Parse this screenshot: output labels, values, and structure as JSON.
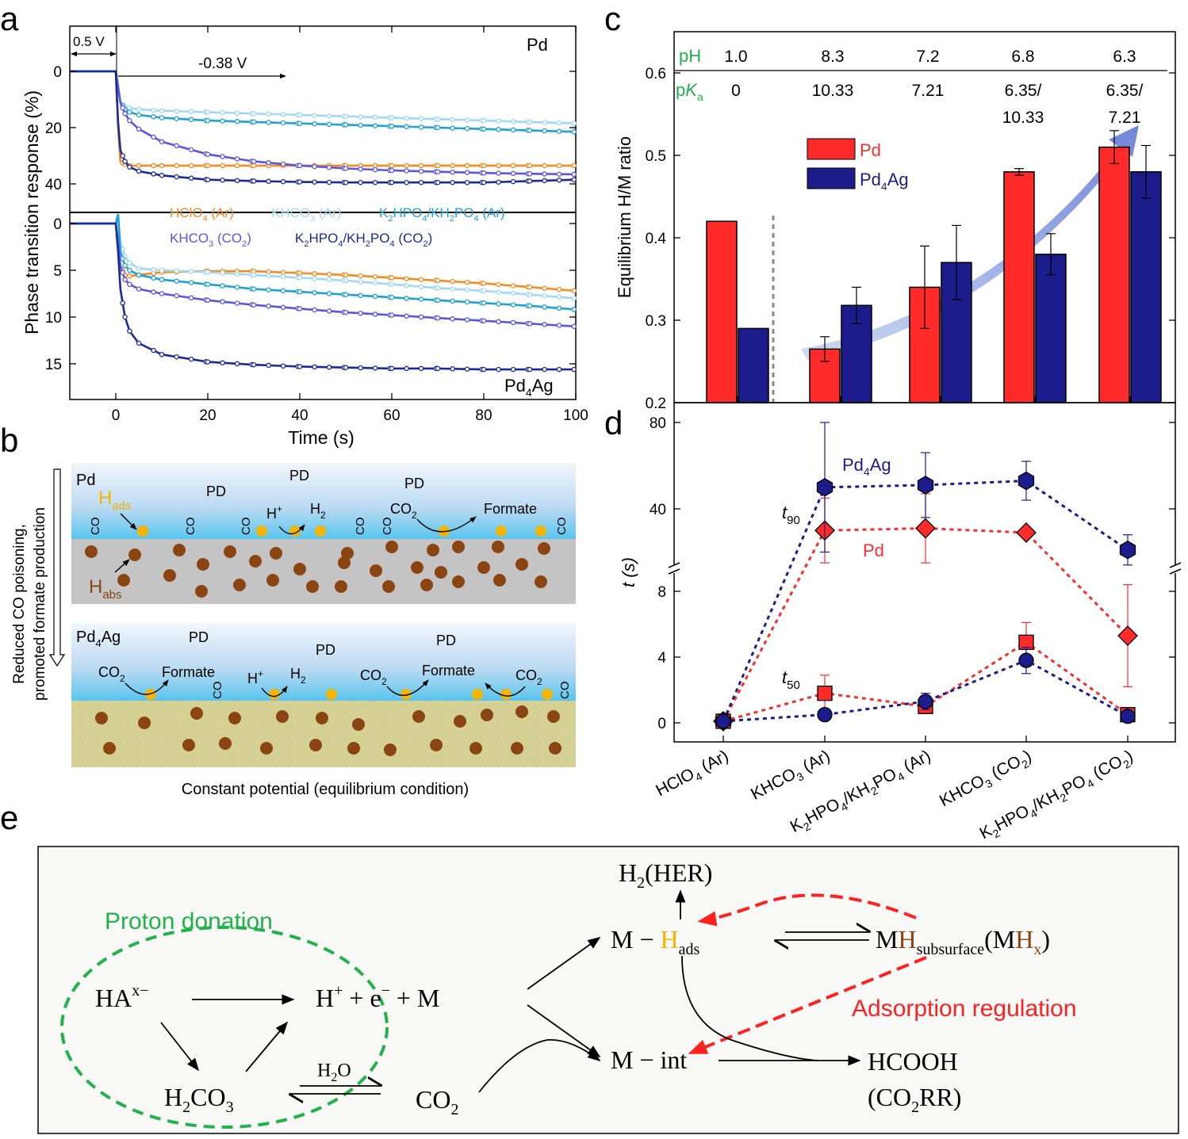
{
  "panels": {
    "a": "a",
    "b": "b",
    "c": "c",
    "d": "d",
    "e": "e"
  },
  "colors": {
    "orange": "#f58a1f",
    "lightblue": "#9fd8f4",
    "cyan": "#1ea0d8",
    "blue_violet": "#5a55e3",
    "navy": "#1a2a9a",
    "red": "#ff2b2b",
    "darkblue": "#1c1c8c",
    "green": "#21b24b"
  },
  "panel_b": {
    "side_label_1": "Reduced CO poisoning,",
    "side_label_2": "promoted formate production",
    "top": {
      "metal": "Pd",
      "h_ads": "H",
      "h_ads_sub": "ads",
      "h_abs": "H",
      "h_abs_sub": "abs",
      "pd_labels": [
        "PD",
        "PD",
        "PD"
      ],
      "co": "CO",
      "h_plus": "H",
      "h_plus_sup": "+",
      "h2": "H",
      "h2_sub": "2",
      "co2": "CO",
      "co2_sub": "2",
      "formate": "Formate"
    },
    "bottom": {
      "metal": "Pd",
      "metal_sub": "4",
      "metal_suffix": "Ag",
      "pd_labels": [
        "PD",
        "PD",
        "PD"
      ],
      "co2": "CO",
      "co2_sub": "2",
      "formate": "Formate",
      "h_plus": "H",
      "h_plus_sup": "+",
      "h2": "H",
      "h2_sub": "2",
      "co": "CO"
    },
    "caption": "Constant potential (equilibrium condition)"
  },
  "panel_e": {
    "proton_donation": "Proton donation",
    "adsorption_regulation": "Adsorption regulation",
    "ha": "HA",
    "ha_sup": "x−",
    "hplus_eq": "H",
    "hplus_eq_sup": "+",
    "hplus_eq_rest": " + e",
    "e_sup": "−",
    "m_rest": " + M",
    "h2co3_a": "H",
    "h2co3_sub1": "2",
    "h2co3_b": "CO",
    "h2co3_sub2": "3",
    "h2o_a": "H",
    "h2o_sub": "2",
    "h2o_b": "O",
    "co2_a": "CO",
    "co2_sub": "2",
    "m_hads_a": "M − ",
    "m_hads_h": "H",
    "m_hads_sub": "ads",
    "h2her_a": "H",
    "h2her_sub": "2",
    "h2her_b": "(HER)",
    "mh_sub_a": "M",
    "mh_sub_h": "H",
    "mh_sub_sub": "subsurface",
    "mh_sub_b": "(M",
    "mh_sub_h2": "H",
    "mh_sub_x": "x",
    "mh_sub_c": ")",
    "m_int": "M − int",
    "hcooh": "HCOOH",
    "co2rr_a": "(CO",
    "co2rr_sub": "2",
    "co2rr_b": "RR)"
  },
  "chart_data": [
    {
      "panel": "a",
      "type": "line",
      "xlabel": "Time (s)",
      "ylabel": "Phase transition response (%)",
      "xlim": [
        -10,
        100
      ],
      "xticks": [
        0,
        20,
        40,
        60,
        80,
        100
      ],
      "annotations": {
        "step1": "0.5 V",
        "step2": "-0.38 V",
        "top_metal": "Pd",
        "bottom_metal_a": "Pd",
        "bottom_metal_sub": "4",
        "bottom_metal_b": "Ag"
      },
      "legend": [
        {
          "text": "HClO",
          "sub": "4",
          "rest": " (Ar)",
          "color": "#f58a1f"
        },
        {
          "text": "KHCO",
          "sub": "3",
          "rest": " (Ar)",
          "color": "#9fd8f4"
        },
        {
          "text": "K",
          "sub": "2",
          "rest": "HPO",
          "sub2": "4",
          "rest2": "/KH",
          "sub3": "2",
          "rest3": "PO",
          "sub4": "4",
          "rest4": " (Ar)",
          "color": "#1ea0d8"
        },
        {
          "text": "KHCO",
          "sub": "3",
          "rest": " (CO",
          "sub2": "2",
          "rest2": ")",
          "color": "#5a55e3"
        },
        {
          "text": "K",
          "sub": "2",
          "rest": "HPO",
          "sub2": "4",
          "rest2": "/KH",
          "sub3": "2",
          "rest3": "PO",
          "sub4": "4",
          "rest4": " (CO",
          "sub5": "2",
          "rest5": ")",
          "color": "#1a2a9a"
        }
      ],
      "subplots": [
        {
          "name": "Pd",
          "ylim": [
            0,
            50
          ],
          "yticks": [
            0,
            20,
            40
          ],
          "inverted": true,
          "series": [
            {
              "label": "HClO4 (Ar)",
              "color": "#f58a1f",
              "x": [
                -10,
                0,
                0.5,
                1,
                2,
                3,
                5,
                10,
                20,
                30,
                40,
                50,
                60,
                70,
                80,
                90,
                100
              ],
              "y": [
                0,
                0,
                20,
                32,
                33,
                33.5,
                33.5,
                33.5,
                33.5,
                33.5,
                33.5,
                33.5,
                33.5,
                33.5,
                33.5,
                33.5,
                33.5
              ]
            },
            {
              "label": "KHCO3 (Ar)",
              "color": "#9fd8f4",
              "x": [
                -10,
                0,
                0.5,
                1,
                2,
                3,
                5,
                10,
                20,
                30,
                40,
                50,
                60,
                70,
                80,
                90,
                100
              ],
              "y": [
                0,
                0,
                6,
                11,
                12.5,
                13,
                13.5,
                14,
                14.5,
                15,
                15.5,
                16,
                16.5,
                17,
                17.5,
                18,
                18.5
              ]
            },
            {
              "label": "K2HPO4/KH2PO4 (Ar)",
              "color": "#1ea0d8",
              "x": [
                -10,
                0,
                0.5,
                1,
                2,
                3,
                5,
                10,
                20,
                30,
                40,
                50,
                60,
                70,
                80,
                90,
                100
              ],
              "y": [
                0,
                0,
                5,
                11,
                13.5,
                14.5,
                15.5,
                16.5,
                17.5,
                18,
                18.5,
                19,
                19.5,
                20,
                20.5,
                21,
                21.5
              ]
            },
            {
              "label": "KHCO3 (CO2)",
              "color": "#5a55e3",
              "x": [
                -10,
                0,
                0.5,
                1,
                2,
                3,
                5,
                10,
                20,
                30,
                40,
                50,
                60,
                70,
                80,
                90,
                100
              ],
              "y": [
                0,
                0,
                6,
                11,
                15,
                17.5,
                20.5,
                25,
                29.5,
                32,
                33.5,
                34.5,
                35.2,
                35.7,
                36.1,
                36.4,
                36.6
              ]
            },
            {
              "label": "K2HPO4/KH2PO4 (CO2)",
              "color": "#1a2a9a",
              "x": [
                -10,
                0,
                0.5,
                1,
                2,
                3,
                5,
                10,
                20,
                30,
                40,
                50,
                60,
                70,
                80,
                90,
                100
              ],
              "y": [
                0,
                0,
                18,
                28,
                32,
                34,
                35.5,
                37,
                38.5,
                39,
                39.3,
                39.5,
                39.5,
                39.5,
                39.5,
                39,
                38.5
              ]
            }
          ]
        },
        {
          "name": "Pd4Ag",
          "ylim": [
            -1,
            19
          ],
          "yticks": [
            0,
            5,
            10,
            15
          ],
          "inverted": true,
          "series": [
            {
              "label": "HClO4 (Ar)",
              "color": "#f58a1f",
              "x": [
                -10,
                0,
                0.5,
                1,
                2,
                3,
                5,
                10,
                20,
                30,
                40,
                50,
                60,
                70,
                80,
                90,
                100
              ],
              "y": [
                0,
                0,
                2,
                4.5,
                5.5,
                5.6,
                5.5,
                5.2,
                5.1,
                5.1,
                5.3,
                5.5,
                5.8,
                6.1,
                6.4,
                6.8,
                7.2
              ]
            },
            {
              "label": "KHCO3 (Ar)",
              "color": "#9fd8f4",
              "x": [
                -10,
                0,
                0.5,
                1,
                2,
                3,
                5,
                10,
                20,
                30,
                40,
                50,
                60,
                70,
                80,
                90,
                100
              ],
              "y": [
                0,
                0,
                -1,
                2,
                3.5,
                4.2,
                4.8,
                5,
                5.2,
                5.5,
                5.8,
                6.1,
                6.5,
                6.9,
                7.2,
                7.6,
                8
              ]
            },
            {
              "label": "K2HPO4/KH2PO4 (Ar)",
              "color": "#1ea0d8",
              "x": [
                -10,
                0,
                0.5,
                1,
                2,
                3,
                5,
                10,
                20,
                30,
                40,
                50,
                60,
                70,
                80,
                90,
                100
              ],
              "y": [
                0,
                0,
                -1,
                3,
                4.5,
                5,
                5.5,
                6,
                6.5,
                7,
                7.3,
                7.6,
                7.9,
                8.2,
                8.5,
                8.8,
                9.2
              ]
            },
            {
              "label": "KHCO3 (CO2)",
              "color": "#5a55e3",
              "x": [
                -10,
                0,
                0.5,
                1,
                2,
                3,
                5,
                10,
                20,
                30,
                40,
                50,
                60,
                70,
                80,
                90,
                100
              ],
              "y": [
                0,
                0,
                2,
                4.5,
                6,
                6.5,
                7,
                7.5,
                8.2,
                8.7,
                9.1,
                9.5,
                9.8,
                10.1,
                10.4,
                10.7,
                11
              ]
            },
            {
              "label": "K2HPO4/KH2PO4 (CO2)",
              "color": "#1a2a9a",
              "x": [
                -10,
                0,
                0.5,
                1,
                2,
                3,
                5,
                10,
                20,
                30,
                40,
                50,
                60,
                70,
                80,
                90,
                100
              ],
              "y": [
                0,
                0,
                3,
                7,
                10,
                11.5,
                12.8,
                14,
                14.8,
                15.1,
                15.3,
                15.4,
                15.5,
                15.5,
                15.6,
                15.6,
                15.6
              ]
            }
          ]
        }
      ]
    },
    {
      "panel": "c",
      "type": "bar",
      "ylabel": "Equilibrium H/M ratio",
      "ylim": [
        0.2,
        0.6
      ],
      "yticks": [
        0.2,
        0.3,
        0.4,
        0.5,
        0.6
      ],
      "header": {
        "ph_label": "pH",
        "pka_label_p": "p",
        "pka_label_k": "K",
        "pka_label_sub": "a",
        "ph": [
          "1.0",
          "8.3",
          "7.2",
          "6.8",
          "6.3"
        ],
        "pka": [
          [
            "0"
          ],
          [
            "10.33"
          ],
          [
            "7.21"
          ],
          [
            "6.35/",
            "10.33"
          ],
          [
            "6.35/",
            "7.21"
          ]
        ]
      },
      "categories": [
        "HClO4 (Ar)",
        "KHCO3 (Ar)",
        "K2HPO4/KH2PO4 (Ar)",
        "KHCO3 (CO2)",
        "K2HPO4/KH2PO4 (CO2)"
      ],
      "series": [
        {
          "name": "Pd",
          "color": "#ff2b2b",
          "values": [
            0.42,
            0.265,
            0.34,
            0.48,
            0.51
          ],
          "errors": [
            0,
            0.015,
            0.05,
            0.004,
            0.02
          ]
        },
        {
          "name": "Pd4Ag",
          "name_parts": [
            "Pd",
            "4",
            "Ag"
          ],
          "color": "#1c1c8c",
          "values": [
            0.29,
            0.318,
            0.37,
            0.38,
            0.48
          ],
          "errors": [
            0,
            0.022,
            0.045,
            0.025,
            0.032
          ]
        }
      ]
    },
    {
      "panel": "d",
      "type": "scatter",
      "ylabel": "t (s)",
      "yticks_lower": [
        0,
        4,
        8
      ],
      "yticks_upper": [
        40,
        80
      ],
      "categories": [
        "HClO4 (Ar)",
        "KHCO3 (Ar)",
        "K2HPO4/KH2PO4 (Ar)",
        "KHCO3 (CO2)",
        "K2HPO4/KH2PO4 (CO2)"
      ],
      "xtick_labels": [
        [
          {
            "t": "HClO"
          },
          {
            "s": "4"
          },
          {
            "t": " (Ar)"
          }
        ],
        [
          {
            "t": "KHCO"
          },
          {
            "s": "3"
          },
          {
            "t": " (Ar)"
          }
        ],
        [
          {
            "t": "K"
          },
          {
            "s": "2"
          },
          {
            "t": "HPO"
          },
          {
            "s": "4"
          },
          {
            "t": "/KH"
          },
          {
            "s": "2"
          },
          {
            "t": "PO"
          },
          {
            "s": "4"
          },
          {
            "t": " (Ar)"
          }
        ],
        [
          {
            "t": "KHCO"
          },
          {
            "s": "3"
          },
          {
            "t": " (CO"
          },
          {
            "s": "2"
          },
          {
            "t": ")"
          }
        ],
        [
          {
            "t": "K"
          },
          {
            "s": "2"
          },
          {
            "t": "HPO"
          },
          {
            "s": "4"
          },
          {
            "t": "/KH"
          },
          {
            "s": "2"
          },
          {
            "t": "PO"
          },
          {
            "s": "4"
          },
          {
            "t": " (CO"
          },
          {
            "s": "2"
          },
          {
            "t": ")"
          }
        ]
      ],
      "labels": {
        "t90_t": "t",
        "t90_sub": "90",
        "t50_t": "t",
        "t50_sub": "50",
        "pd4ag_a": "Pd",
        "pd4ag_sub": "4",
        "pd4ag_b": "Ag",
        "pd": "Pd"
      },
      "series": [
        {
          "name": "Pd t90",
          "color": "#ff2b2b",
          "marker": "diamond",
          "values": [
            0.1,
            30,
            31,
            29,
            5.3
          ],
          "errors": [
            0,
            15,
            16,
            0,
            3.1
          ]
        },
        {
          "name": "Pd4Ag t90",
          "color": "#1c1c8c",
          "marker": "hexagon",
          "values": [
            0.1,
            50,
            51,
            53,
            21
          ],
          "errors": [
            0,
            30,
            15,
            9,
            7
          ]
        },
        {
          "name": "Pd t50",
          "color": "#ff2b2b",
          "marker": "square",
          "values": [
            0.1,
            1.8,
            1.0,
            4.9,
            0.5
          ],
          "errors": [
            0,
            1.1,
            0,
            1.2,
            0
          ]
        },
        {
          "name": "Pd4Ag t50",
          "color": "#1c1c8c",
          "marker": "circle",
          "values": [
            0.1,
            0.5,
            1.3,
            3.8,
            0.4
          ],
          "errors": [
            0,
            0,
            0.5,
            0.8,
            0
          ]
        }
      ]
    }
  ]
}
